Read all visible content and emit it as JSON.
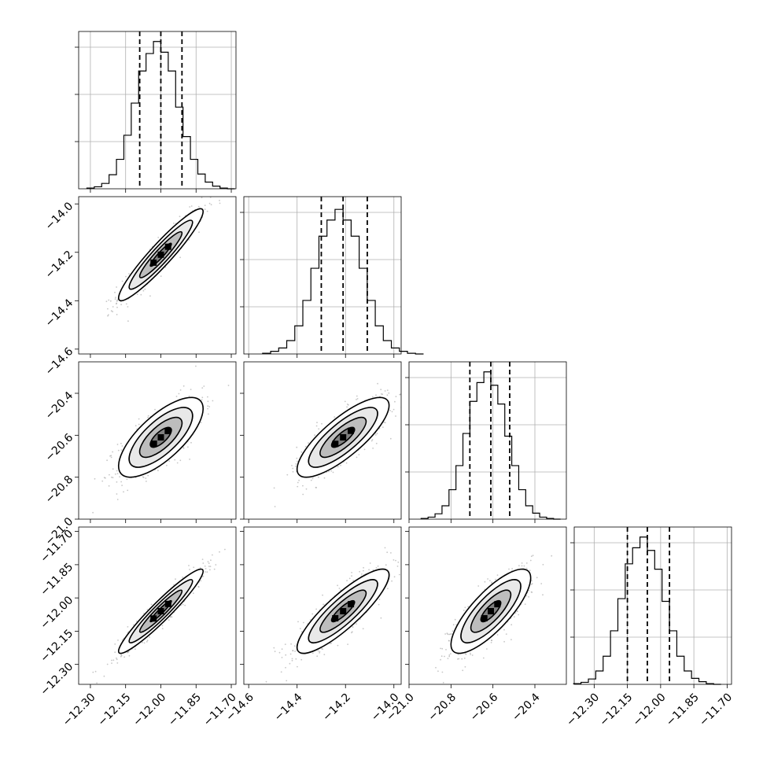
{
  "colors": {
    "line": "#000000",
    "grid": "#b0b0b0",
    "points": "#999999",
    "background": "#ffffff"
  },
  "chart_data": {
    "type": "corner",
    "params": [
      {
        "range": [
          -12.35,
          -11.68
        ],
        "ticks": [
          -12.3,
          -12.15,
          -12.0,
          -11.85,
          -11.7
        ],
        "ticklabels": [
          "−12.30",
          "−12.15",
          "−12.00",
          "−11.85",
          "−11.70"
        ],
        "median": -12.0,
        "q16": -12.09,
        "q84": -11.91
      },
      {
        "range": [
          -14.62,
          -13.97
        ],
        "ticks": [
          -14.6,
          -14.4,
          -14.2,
          -14.0
        ],
        "ticklabels": [
          "−14.6",
          "−14.4",
          "−14.2",
          "−14.0"
        ],
        "median": -14.21,
        "q16": -14.3,
        "q84": -14.11
      },
      {
        "range": [
          -21.0,
          -20.25
        ],
        "ticks": [
          -21.0,
          -20.8,
          -20.6,
          -20.4
        ],
        "ticklabels": [
          "−21.0",
          "−20.8",
          "−20.6",
          "−20.4"
        ],
        "median": -20.61,
        "q16": -20.71,
        "q84": -20.52
      },
      {
        "range": [
          -12.39,
          -11.68
        ],
        "ticks": [
          -12.3,
          -12.15,
          -12.0,
          -11.85,
          -11.7
        ],
        "ticklabels": [
          "−12.30",
          "−12.15",
          "−12.00",
          "−11.85",
          "−11.70"
        ],
        "median": -12.06,
        "q16": -12.15,
        "q84": -11.96
      }
    ],
    "correlations": [
      {
        "row": 1,
        "col": 0,
        "rho": 0.94
      },
      {
        "row": 2,
        "col": 0,
        "rho": 0.72
      },
      {
        "row": 2,
        "col": 1,
        "rho": 0.8
      },
      {
        "row": 3,
        "col": 0,
        "rho": 0.95
      },
      {
        "row": 3,
        "col": 1,
        "rho": 0.86
      },
      {
        "row": 3,
        "col": 2,
        "rho": 0.79
      }
    ],
    "histograms": [
      {
        "counts": [
          1,
          3,
          8,
          21,
          44,
          80,
          128,
          176,
          202,
          220,
          204,
          176,
          122,
          78,
          44,
          22,
          10,
          4,
          1,
          0
        ]
      },
      {
        "counts": [
          1,
          4,
          9,
          20,
          42,
          80,
          128,
          176,
          200,
          216,
          200,
          176,
          128,
          80,
          42,
          20,
          9,
          4,
          1,
          0
        ]
      },
      {
        "counts": [
          1,
          3,
          8,
          20,
          44,
          80,
          128,
          176,
          204,
          220,
          200,
          172,
          124,
          80,
          44,
          20,
          9,
          3,
          1,
          0
        ]
      },
      {
        "counts": [
          1,
          3,
          8,
          20,
          42,
          80,
          128,
          180,
          204,
          220,
          200,
          172,
          124,
          80,
          42,
          20,
          9,
          4,
          1,
          0
        ]
      }
    ],
    "hist_ylim": [
      0,
      235
    ],
    "hist_grid_fractions": [
      0.3,
      0.6,
      0.9
    ],
    "contour_levels_sigma": [
      0.5,
      1.0,
      1.5,
      2.0
    ],
    "grid": true
  }
}
